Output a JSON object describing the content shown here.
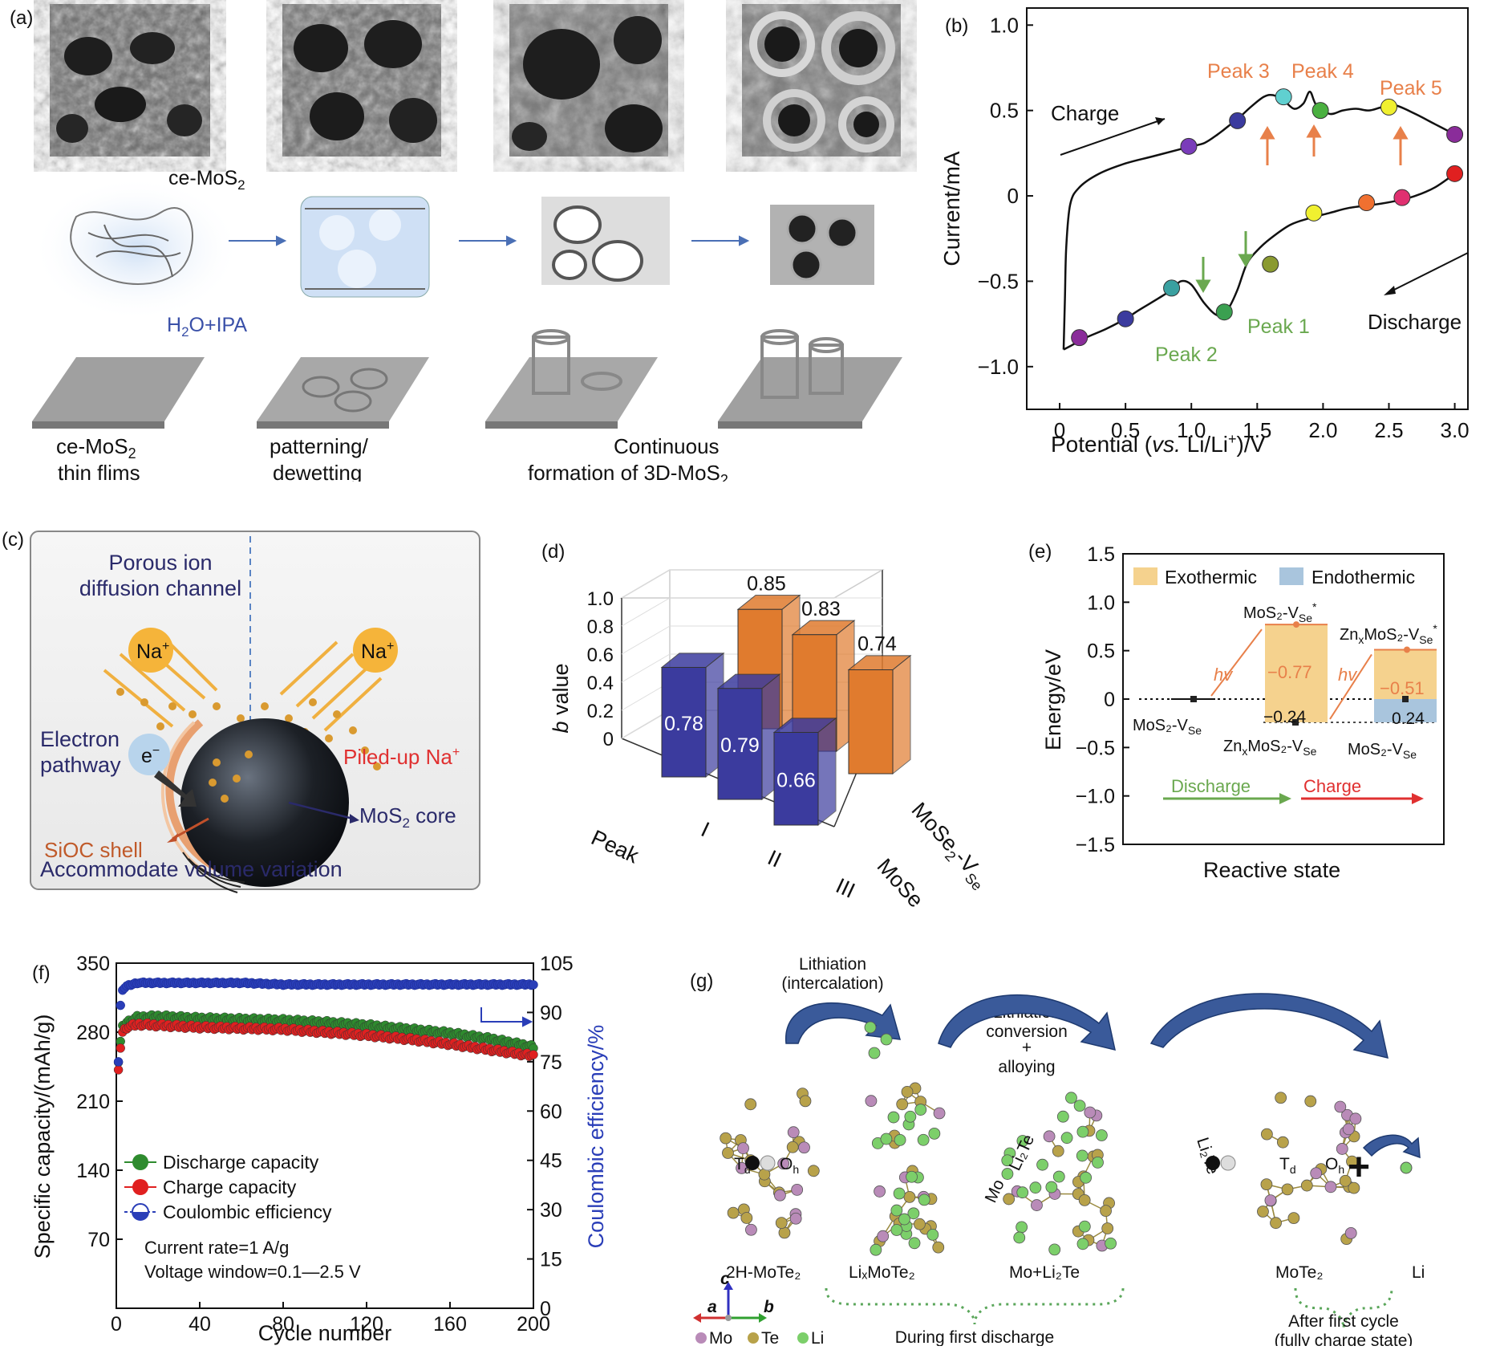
{
  "panel_a": {
    "label": "(a)",
    "film_label": "ce-MoS",
    "film_sub": "2",
    "solvent_label_pre": "H",
    "solvent_sub": "2",
    "solvent_label_post": "O+IPA",
    "step1_line1_pre": "ce-MoS",
    "step1_line1_sub": "2",
    "step1_line2": "thin flims",
    "step2_line1": "patterning/",
    "step2_line2": "dewetting",
    "step3_line1": "Continuous",
    "step3_line2_pre": "formation of 3D-MoS",
    "step3_line2_sub": "2"
  },
  "panel_b": {
    "label": "(b)",
    "xlabel_pre": "Potential (",
    "xlabel_italic": "vs.",
    "xlabel_post": " Li/Li",
    "xlabel_sup": "+",
    "xlabel_end": ")/V",
    "ylabel": "Current/mA",
    "charge": "Charge",
    "discharge": "Discharge",
    "peak1": "Peak 1",
    "peak2": "Peak 2",
    "peak3": "Peak 3",
    "peak4": "Peak 4",
    "peak5": "Peak 5",
    "colors": {
      "orange": "#e8804a",
      "green": "#6aa84f"
    }
  },
  "panel_c": {
    "label": "(c)",
    "channel_l1": "Porous ion",
    "channel_l2": "diffusion channel",
    "na": "Na",
    "na_sup": "+",
    "electron_l1": "Electron",
    "electron_l2": "pathway",
    "electron": "e",
    "electron_sup": "−",
    "piled": "Piled-up Na",
    "piled_sup": "+",
    "shell": "SiOC shell",
    "core_pre": "MoS",
    "core_sub": "2",
    "core_post": " core",
    "volume": "Accommodate volume variation"
  },
  "panel_d": {
    "label": "(d)",
    "ylabel_italic": "b",
    "ylabel_post": " value",
    "xlabel": "Peak",
    "depth1_pre": "MoSe",
    "depth1_sub": "2",
    "depth2_pre": "MoSe",
    "depth2_sub": "2",
    "depth2_mid": "-V",
    "depth2_sub2": "Se",
    "peak_labels": [
      "I",
      "II",
      "III"
    ],
    "yticks": [
      "0",
      "0.2",
      "0.4",
      "0.6",
      "0.8",
      "1.0"
    ],
    "colors": {
      "mose2": "#3b3b9e",
      "mose2v": "#e07b2e"
    }
  },
  "panel_e": {
    "label": "(e)",
    "ylabel": "Energy/eV",
    "xlabel": "Reactive state",
    "exo": "Exothermic",
    "endo": "Endothermic",
    "hv": "hv",
    "s_mos2v": "MoS₂-V",
    "s_se": "Se",
    "s_mos2v_star": "MoS₂-V",
    "s_zn": "Zn",
    "s_x": "x",
    "s_mos2": "MoS₂-V",
    "v1": "−0.77",
    "v2": "−0.24",
    "v3": "−0.51",
    "v4": "0.24",
    "discharge": "Discharge",
    "charge": "Charge",
    "yticks": [
      "1.5",
      "1.0",
      "0.5",
      "0",
      "−0.5",
      "−1.0",
      "−1.5"
    ],
    "colors": {
      "exo": "#f5d28e",
      "endo": "#a9c5dd"
    }
  },
  "panel_f": {
    "label": "(f)",
    "xlabel": "Cycle number",
    "ylabel_left": "Specific capacity/(mAh/g)",
    "ylabel_right": "Coulombic efficiency/%",
    "legend_discharge": "Discharge capacity",
    "legend_charge": "Charge capacity",
    "legend_ce": "Coulombic efficiency",
    "note1": "Current rate=1 A/g",
    "note2": "Voltage window=0.1—2.5 V",
    "xticks": [
      "0",
      "40",
      "80",
      "120",
      "160",
      "200"
    ],
    "yticks_left": [
      "350",
      "280",
      "210",
      "140",
      "70"
    ],
    "yticks_right": [
      "105",
      "90",
      "75",
      "60",
      "45",
      "30",
      "15",
      "0"
    ],
    "colors": {
      "discharge": "#2e8b2e",
      "charge": "#e02020",
      "ce": "#2a3eb8"
    }
  },
  "panel_g": {
    "label": "(g)",
    "lith1_l1": "Lithiation",
    "lith1_l2": "(intercalation)",
    "lith2_l1": "Lithiation",
    "lith2_l2": "conversion",
    "lith2_l3": "+",
    "lith2_l4": "alloying",
    "s1": "2H-MoTe₂",
    "s2": "LiₓMoTe₂",
    "s3": "Mo+Li₂Te",
    "s4": "MoTe₂",
    "s5": "Li",
    "td": "T",
    "td_sub": "d",
    "oh": "O",
    "oh_sub": "h",
    "li2te": "Li₂Te",
    "mo": "Mo",
    "during": "During first discharge",
    "after_l1": "After first cycle",
    "after_l2": "(fully charge state)",
    "ax_a": "a",
    "ax_b": "b",
    "ax_c": "c",
    "legend_mo": "Mo",
    "legend_te": "Te",
    "legend_li": "Li",
    "plus": "+",
    "colors": {
      "mo": "#b98bb8",
      "te": "#b8a24a",
      "li": "#7ccf6a"
    }
  },
  "chart_data": [
    {
      "panel": "b",
      "type": "line",
      "title": "",
      "xlabel": "Potential (vs. Li/Li+)/V",
      "ylabel": "Current/mA",
      "xlim": [
        -0.25,
        3.1
      ],
      "ylim": [
        -1.25,
        1.1
      ],
      "xticks": [
        "0",
        "0.5",
        "1.0",
        "1.5",
        "2.0",
        "2.5",
        "3.0"
      ],
      "yticks": [
        "1.0",
        "0.5",
        "0",
        "−0.5",
        "−1.0"
      ],
      "series": [
        {
          "name": "Charge branch",
          "x": [
            0.03,
            0.04,
            0.05,
            0.08,
            0.15,
            0.3,
            0.5,
            0.7,
            0.9,
            1.0,
            1.1,
            1.2,
            1.3,
            1.38,
            1.45,
            1.55,
            1.62,
            1.7,
            1.78,
            1.85,
            1.9,
            1.95,
            2.05,
            2.15,
            2.25,
            2.35,
            2.45,
            2.55,
            2.7,
            2.85,
            3.0
          ],
          "y": [
            -0.9,
            -0.6,
            -0.3,
            -0.05,
            0.05,
            0.13,
            0.19,
            0.23,
            0.27,
            0.29,
            0.31,
            0.36,
            0.42,
            0.47,
            0.52,
            0.58,
            0.59,
            0.56,
            0.51,
            0.54,
            0.61,
            0.53,
            0.48,
            0.5,
            0.51,
            0.5,
            0.52,
            0.53,
            0.48,
            0.42,
            0.36
          ]
        },
        {
          "name": "Discharge branch",
          "x": [
            3.0,
            2.85,
            2.7,
            2.55,
            2.4,
            2.2,
            2.05,
            1.9,
            1.75,
            1.6,
            1.5,
            1.42,
            1.35,
            1.28,
            1.2,
            1.1,
            1.0,
            0.92,
            0.85,
            0.75,
            0.6,
            0.5,
            0.35,
            0.2,
            0.08,
            0.03
          ],
          "y": [
            0.13,
            0.05,
            0.0,
            -0.03,
            -0.05,
            -0.07,
            -0.1,
            -0.13,
            -0.17,
            -0.25,
            -0.32,
            -0.4,
            -0.55,
            -0.66,
            -0.7,
            -0.63,
            -0.52,
            -0.5,
            -0.55,
            -0.6,
            -0.67,
            -0.72,
            -0.78,
            -0.83,
            -0.88,
            -0.9
          ]
        }
      ],
      "markers": [
        {
          "x": 0.15,
          "y": -0.83,
          "color": "#8a2c9a"
        },
        {
          "x": 0.5,
          "y": -0.72,
          "color": "#3b3b9e"
        },
        {
          "x": 0.85,
          "y": -0.54,
          "color": "#3aa0a0"
        },
        {
          "x": 1.25,
          "y": -0.68,
          "color": "#3aa050"
        },
        {
          "x": 1.6,
          "y": -0.4,
          "color": "#8a9a30"
        },
        {
          "x": 1.93,
          "y": -0.1,
          "color": "#f0f030"
        },
        {
          "x": 2.33,
          "y": -0.04,
          "color": "#f07030"
        },
        {
          "x": 2.6,
          "y": -0.01,
          "color": "#e03070"
        },
        {
          "x": 3.0,
          "y": 0.13,
          "color": "#e02020"
        },
        {
          "x": 0.98,
          "y": 0.29,
          "color": "#7a3cba"
        },
        {
          "x": 1.35,
          "y": 0.44,
          "color": "#3b3b9e"
        },
        {
          "x": 1.7,
          "y": 0.58,
          "color": "#60d0d0"
        },
        {
          "x": 1.98,
          "y": 0.5,
          "color": "#4ab040"
        },
        {
          "x": 2.5,
          "y": 0.52,
          "color": "#f0f030"
        },
        {
          "x": 3.0,
          "y": 0.36,
          "color": "#8a2c9a"
        }
      ]
    },
    {
      "panel": "d",
      "type": "bar",
      "title": "",
      "xlabel": "Peak",
      "ylabel": "b value",
      "ylim": [
        0,
        1.0
      ],
      "categories": [
        "I",
        "II",
        "III"
      ],
      "series": [
        {
          "name": "MoSe2",
          "values": [
            0.78,
            0.79,
            0.66
          ]
        },
        {
          "name": "MoSe2-VSe",
          "values": [
            0.85,
            0.83,
            0.74
          ]
        }
      ]
    },
    {
      "panel": "e",
      "type": "bar",
      "title": "",
      "xlabel": "Reactive state",
      "ylabel": "Energy/eV",
      "ylim": [
        -1.5,
        1.5
      ],
      "levels": [
        {
          "state": "MoS2-VSe",
          "energy": 0
        },
        {
          "state": "MoS2-VSe*",
          "energy": 0.77
        },
        {
          "state": "ZnxMoS2-VSe",
          "energy": -0.24
        },
        {
          "state": "ZnxMoS2-VSe*",
          "energy": 0.51
        },
        {
          "state": "MoS2-VSe (final)",
          "energy": 0
        },
        {
          "state": "ZnxMoS2-VSe (charge start)",
          "energy": -0.24
        }
      ],
      "series": [
        {
          "name": "Exothermic",
          "values": [
            -0.77,
            -0.51
          ]
        },
        {
          "name": "Endothermic",
          "values": [
            -0.24,
            0.24
          ]
        }
      ]
    },
    {
      "panel": "f",
      "type": "line",
      "title": "",
      "xlabel": "Cycle number",
      "ylabel": "Specific capacity/(mAh/g)",
      "ylabel_right": "Coulombic efficiency/%",
      "xlim": [
        0,
        200
      ],
      "ylim": [
        0,
        350
      ],
      "ylim_right": [
        0,
        105
      ],
      "x": [
        1,
        2,
        3,
        5,
        10,
        20,
        40,
        60,
        80,
        100,
        120,
        140,
        160,
        180,
        200
      ],
      "series": [
        {
          "name": "Discharge capacity",
          "values": [
            250,
            270,
            285,
            290,
            295,
            296,
            294,
            293,
            292,
            290,
            287,
            283,
            279,
            273,
            265
          ]
        },
        {
          "name": "Charge capacity",
          "values": [
            240,
            265,
            280,
            285,
            288,
            287,
            285,
            284,
            283,
            280,
            277,
            273,
            268,
            262,
            256
          ]
        },
        {
          "name": "Coulombic efficiency",
          "axis": "right",
          "values": [
            75,
            92,
            97,
            98,
            99,
            99,
            99,
            99,
            98.5,
            98.5,
            98.5,
            98.5,
            98.5,
            98.5,
            98.5
          ]
        }
      ]
    }
  ]
}
